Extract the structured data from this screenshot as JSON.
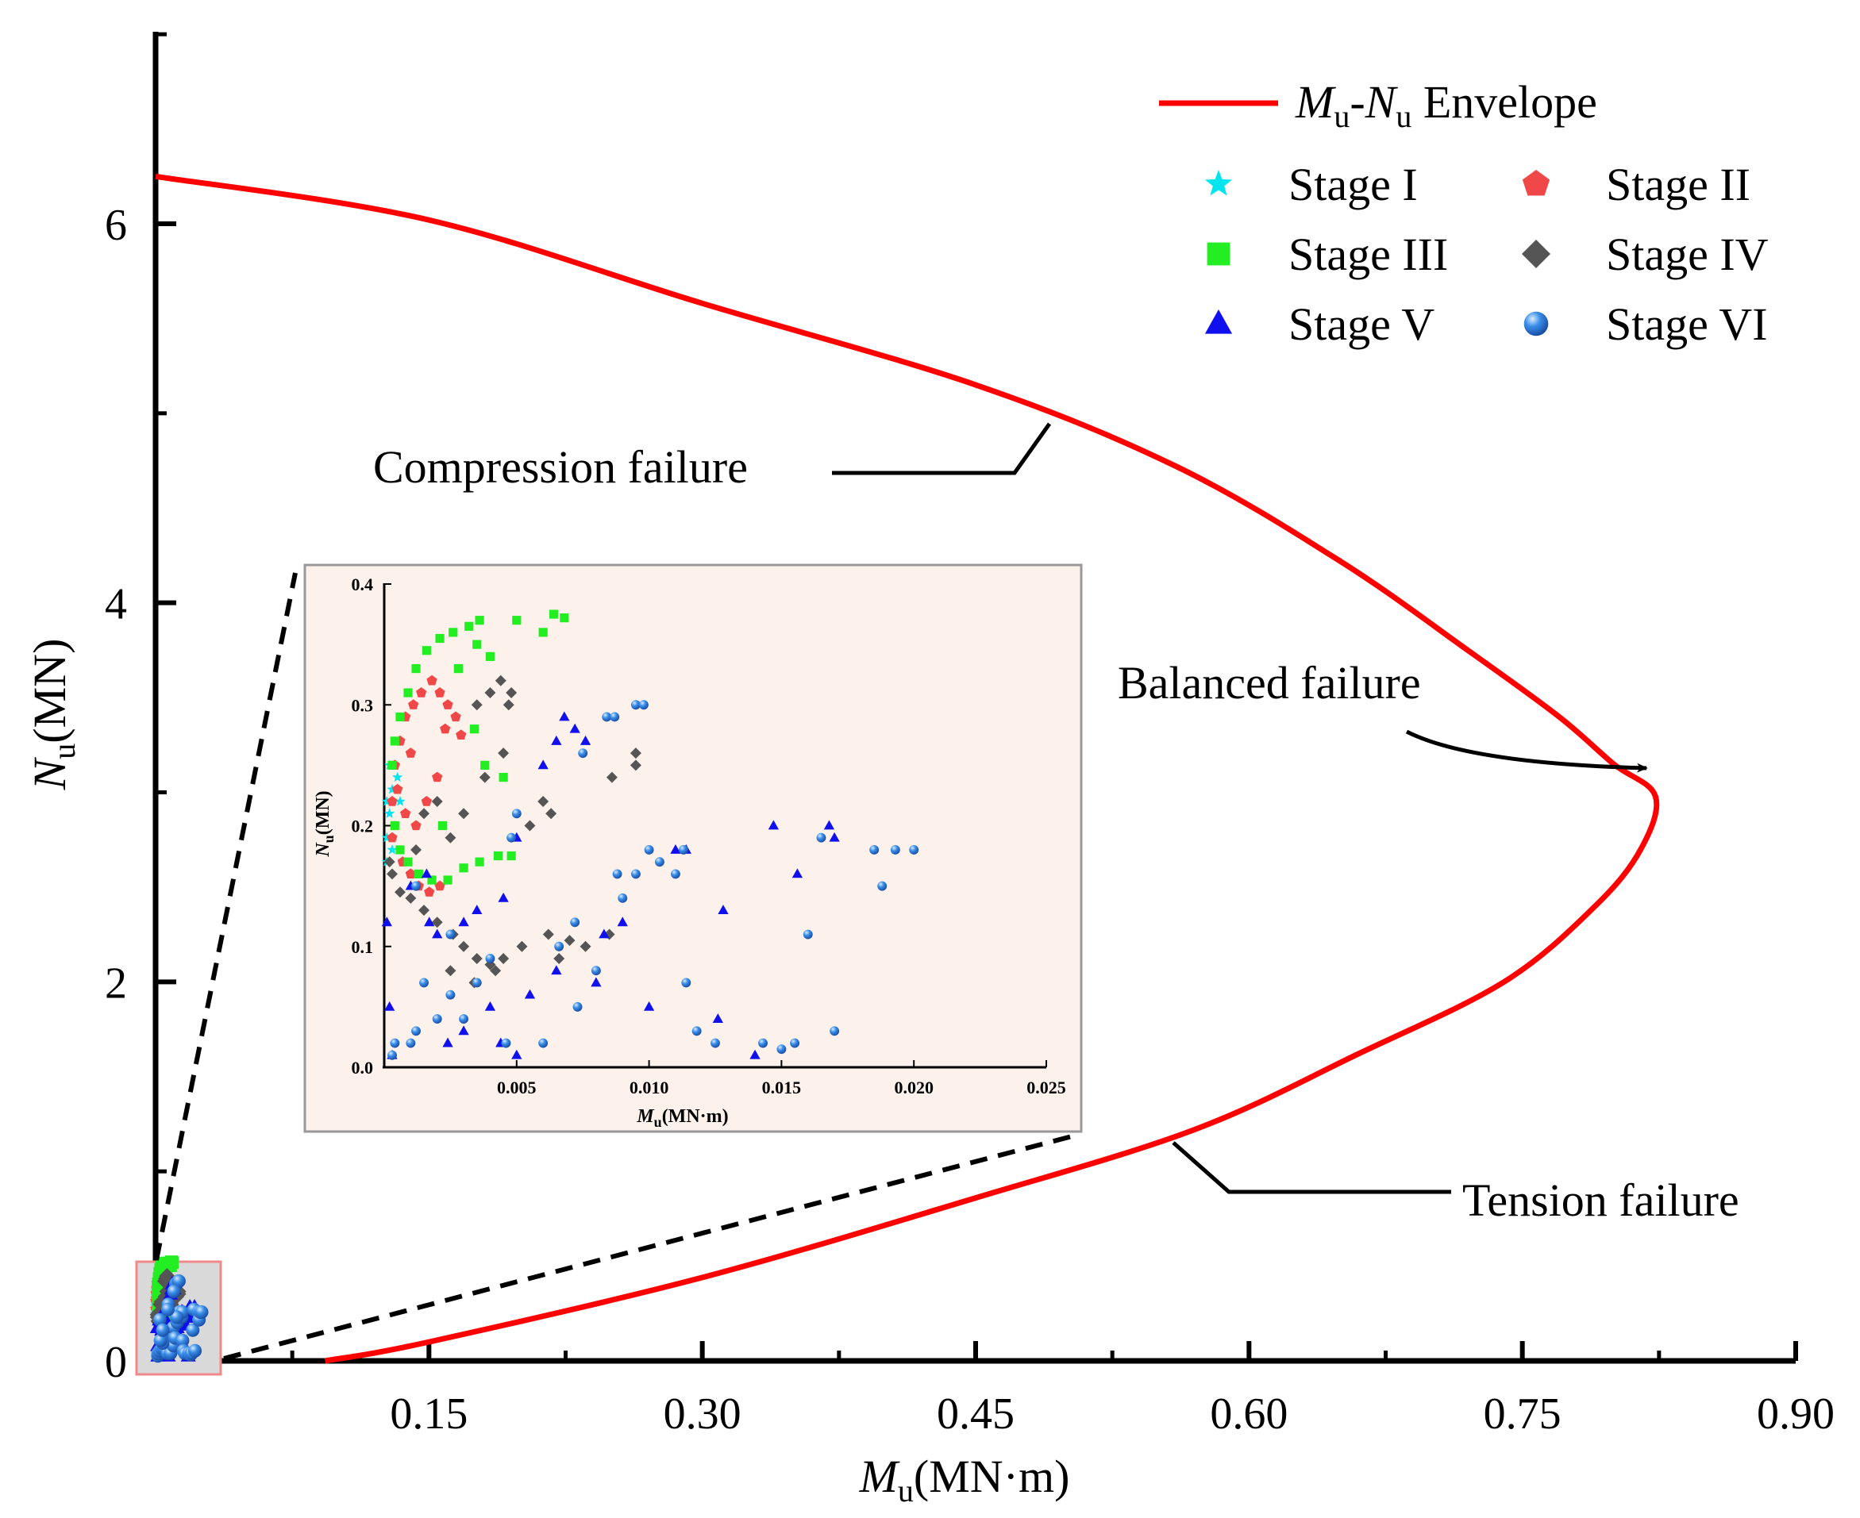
{
  "chart_data": [
    {
      "type": "line",
      "role": "main",
      "xlabel": {
        "main": "M",
        "sub": "u",
        "unit": "(MN·m)"
      },
      "ylabel": {
        "main": "N",
        "sub": "u",
        "unit": "(MN)"
      },
      "xlim": [
        0,
        0.9
      ],
      "ylim": [
        0,
        7.0
      ],
      "xticks": [
        0.15,
        0.3,
        0.45,
        0.6,
        0.75,
        0.9
      ],
      "xtick_labels": [
        "0.15",
        "0.30",
        "0.45",
        "0.60",
        "0.75",
        "0.90"
      ],
      "yticks": [
        0,
        2,
        4,
        6
      ],
      "ytick_labels": [
        "0",
        "2",
        "4",
        "6"
      ],
      "grid": false,
      "series": [
        {
          "name": "Mu-Nu Envelope",
          "color": "#ff0000",
          "points": [
            [
              0.0,
              6.25
            ],
            [
              0.15,
              6.02
            ],
            [
              0.3,
              5.58
            ],
            [
              0.45,
              5.15
            ],
            [
              0.56,
              4.72
            ],
            [
              0.65,
              4.22
            ],
            [
              0.72,
              3.75
            ],
            [
              0.77,
              3.4
            ],
            [
              0.8,
              3.15
            ],
            [
              0.823,
              2.98
            ],
            [
              0.815,
              2.7
            ],
            [
              0.79,
              2.4
            ],
            [
              0.74,
              2.0
            ],
            [
              0.66,
              1.62
            ],
            [
              0.57,
              1.22
            ],
            [
              0.45,
              0.86
            ],
            [
              0.3,
              0.44
            ],
            [
              0.15,
              0.1
            ],
            [
              0.093,
              0.0
            ]
          ]
        }
      ],
      "annotations": [
        {
          "text": "Compression failure",
          "target": [
            0.492,
            5.0
          ]
        },
        {
          "text": "Balanced failure",
          "target": [
            0.823,
            3.06
          ]
        },
        {
          "text": "Tension failure",
          "target": [
            0.55,
            1.2
          ]
        }
      ]
    },
    {
      "type": "scatter",
      "role": "inset",
      "xlabel": {
        "main": "M",
        "sub": "u",
        "unit": "(MN·m)"
      },
      "ylabel": {
        "main": "N",
        "sub": "u",
        "unit": "(MN)"
      },
      "xlim": [
        0,
        0.025
      ],
      "ylim": [
        0,
        0.4
      ],
      "xticks": [
        0.005,
        0.01,
        0.015,
        0.02,
        0.025
      ],
      "xtick_labels": [
        "0.005",
        "0.010",
        "0.015",
        "0.020",
        "0.025"
      ],
      "yticks": [
        0.0,
        0.1,
        0.2,
        0.3,
        0.4
      ],
      "ytick_labels": [
        "0.0",
        "0.1",
        "0.2",
        "0.3",
        "0.4"
      ],
      "series": [
        {
          "name": "Stage I",
          "marker": "star",
          "color": "#00e5ee",
          "points": [
            [
              0.0001,
              0.17
            ],
            [
              0.0001,
              0.19
            ],
            [
              0.0002,
              0.21
            ],
            [
              0.0003,
              0.23
            ],
            [
              0.0002,
              0.25
            ],
            [
              0.0001,
              0.22
            ],
            [
              0.0004,
              0.2
            ],
            [
              0.0003,
              0.18
            ],
            [
              0.0005,
              0.24
            ],
            [
              0.0006,
              0.22
            ]
          ]
        },
        {
          "name": "Stage II",
          "marker": "pentagon",
          "color": "#f04848",
          "points": [
            [
              0.0003,
              0.19
            ],
            [
              0.0003,
              0.22
            ],
            [
              0.0004,
              0.25
            ],
            [
              0.0006,
              0.27
            ],
            [
              0.0008,
              0.29
            ],
            [
              0.0011,
              0.3
            ],
            [
              0.0014,
              0.31
            ],
            [
              0.0018,
              0.32
            ],
            [
              0.0021,
              0.31
            ],
            [
              0.0024,
              0.3
            ],
            [
              0.0027,
              0.29
            ],
            [
              0.0029,
              0.275
            ],
            [
              0.0007,
              0.17
            ],
            [
              0.001,
              0.16
            ],
            [
              0.0013,
              0.15
            ],
            [
              0.0017,
              0.145
            ],
            [
              0.0021,
              0.15
            ],
            [
              0.0005,
              0.23
            ],
            [
              0.0008,
              0.21
            ],
            [
              0.0012,
              0.2
            ],
            [
              0.0016,
              0.22
            ],
            [
              0.002,
              0.24
            ],
            [
              0.0023,
              0.28
            ],
            [
              0.001,
              0.26
            ]
          ]
        },
        {
          "name": "Stage III",
          "marker": "square",
          "color": "#22ee22",
          "points": [
            [
              0.0003,
              0.25
            ],
            [
              0.0004,
              0.27
            ],
            [
              0.0006,
              0.29
            ],
            [
              0.0009,
              0.31
            ],
            [
              0.0012,
              0.33
            ],
            [
              0.0016,
              0.345
            ],
            [
              0.0021,
              0.355
            ],
            [
              0.0026,
              0.36
            ],
            [
              0.0032,
              0.365
            ],
            [
              0.0036,
              0.37
            ],
            [
              0.005,
              0.37
            ],
            [
              0.0064,
              0.375
            ],
            [
              0.0068,
              0.372
            ],
            [
              0.006,
              0.36
            ],
            [
              0.0035,
              0.35
            ],
            [
              0.0004,
              0.2
            ],
            [
              0.0006,
              0.18
            ],
            [
              0.0009,
              0.17
            ],
            [
              0.0013,
              0.16
            ],
            [
              0.0018,
              0.155
            ],
            [
              0.0024,
              0.155
            ],
            [
              0.003,
              0.165
            ],
            [
              0.0036,
              0.17
            ],
            [
              0.0043,
              0.175
            ],
            [
              0.0048,
              0.175
            ],
            [
              0.0045,
              0.24
            ],
            [
              0.0038,
              0.25
            ],
            [
              0.0034,
              0.28
            ],
            [
              0.004,
              0.34
            ],
            [
              0.0028,
              0.33
            ],
            [
              0.0022,
              0.2
            ]
          ]
        },
        {
          "name": "Stage IV",
          "marker": "diamond",
          "color": "#555555",
          "points": [
            [
              0.0002,
              0.17
            ],
            [
              0.0003,
              0.16
            ],
            [
              0.0006,
              0.145
            ],
            [
              0.001,
              0.14
            ],
            [
              0.0015,
              0.13
            ],
            [
              0.002,
              0.12
            ],
            [
              0.0026,
              0.11
            ],
            [
              0.003,
              0.1
            ],
            [
              0.0035,
              0.09
            ],
            [
              0.004,
              0.085
            ],
            [
              0.0045,
              0.09
            ],
            [
              0.0052,
              0.1
            ],
            [
              0.0062,
              0.11
            ],
            [
              0.007,
              0.105
            ],
            [
              0.0076,
              0.1
            ],
            [
              0.0085,
              0.11
            ],
            [
              0.0095,
              0.26
            ],
            [
              0.0095,
              0.25
            ],
            [
              0.0086,
              0.24
            ],
            [
              0.0063,
              0.21
            ],
            [
              0.006,
              0.22
            ],
            [
              0.0055,
              0.2
            ],
            [
              0.0045,
              0.26
            ],
            [
              0.0047,
              0.3
            ],
            [
              0.0048,
              0.31
            ],
            [
              0.0044,
              0.32
            ],
            [
              0.004,
              0.31
            ],
            [
              0.0035,
              0.3
            ],
            [
              0.002,
              0.22
            ],
            [
              0.0025,
              0.19
            ],
            [
              0.003,
              0.21
            ],
            [
              0.0038,
              0.24
            ],
            [
              0.0015,
              0.21
            ],
            [
              0.0012,
              0.18
            ],
            [
              0.0025,
              0.08
            ],
            [
              0.0034,
              0.07
            ],
            [
              0.0042,
              0.08
            ],
            [
              0.0066,
              0.09
            ]
          ]
        },
        {
          "name": "Stage V",
          "marker": "triangle",
          "color": "#1010ee",
          "points": [
            [
              0.0001,
              0.12
            ],
            [
              0.0002,
              0.05
            ],
            [
              0.0003,
              0.01
            ],
            [
              0.001,
              0.15
            ],
            [
              0.0016,
              0.16
            ],
            [
              0.002,
              0.11
            ],
            [
              0.003,
              0.12
            ],
            [
              0.004,
              0.05
            ],
            [
              0.0055,
              0.06
            ],
            [
              0.006,
              0.25
            ],
            [
              0.0065,
              0.27
            ],
            [
              0.0068,
              0.29
            ],
            [
              0.0072,
              0.28
            ],
            [
              0.0076,
              0.27
            ],
            [
              0.0083,
              0.11
            ],
            [
              0.009,
              0.12
            ],
            [
              0.01,
              0.05
            ],
            [
              0.011,
              0.18
            ],
            [
              0.0114,
              0.18
            ],
            [
              0.0126,
              0.04
            ],
            [
              0.0128,
              0.13
            ],
            [
              0.014,
              0.01
            ],
            [
              0.0147,
              0.2
            ],
            [
              0.0156,
              0.16
            ],
            [
              0.0168,
              0.2
            ],
            [
              0.017,
              0.19
            ],
            [
              0.0035,
              0.13
            ],
            [
              0.005,
              0.01
            ],
            [
              0.0044,
              0.02
            ],
            [
              0.003,
              0.03
            ],
            [
              0.0024,
              0.02
            ],
            [
              0.005,
              0.19
            ],
            [
              0.0045,
              0.14
            ],
            [
              0.0065,
              0.08
            ],
            [
              0.008,
              0.07
            ],
            [
              0.0017,
              0.12
            ]
          ]
        },
        {
          "name": "Stage VI",
          "marker": "sphere",
          "color": "#3a8ee8",
          "points": [
            [
              0.0003,
              0.01
            ],
            [
              0.0004,
              0.02
            ],
            [
              0.001,
              0.02
            ],
            [
              0.0012,
              0.03
            ],
            [
              0.0012,
              0.15
            ],
            [
              0.002,
              0.04
            ],
            [
              0.003,
              0.04
            ],
            [
              0.0035,
              0.07
            ],
            [
              0.004,
              0.09
            ],
            [
              0.0046,
              0.02
            ],
            [
              0.006,
              0.02
            ],
            [
              0.0066,
              0.1
            ],
            [
              0.0072,
              0.12
            ],
            [
              0.0073,
              0.05
            ],
            [
              0.008,
              0.08
            ],
            [
              0.009,
              0.14
            ],
            [
              0.0095,
              0.16
            ],
            [
              0.01,
              0.18
            ],
            [
              0.0104,
              0.17
            ],
            [
              0.011,
              0.16
            ],
            [
              0.0113,
              0.18
            ],
            [
              0.0114,
              0.07
            ],
            [
              0.0118,
              0.03
            ],
            [
              0.0125,
              0.02
            ],
            [
              0.0143,
              0.02
            ],
            [
              0.015,
              0.015
            ],
            [
              0.0155,
              0.02
            ],
            [
              0.016,
              0.11
            ],
            [
              0.0165,
              0.19
            ],
            [
              0.017,
              0.03
            ],
            [
              0.0185,
              0.18
            ],
            [
              0.0188,
              0.15
            ],
            [
              0.0193,
              0.18
            ],
            [
              0.02,
              0.18
            ],
            [
              0.0088,
              0.16
            ],
            [
              0.0084,
              0.29
            ],
            [
              0.0087,
              0.29
            ],
            [
              0.0095,
              0.3
            ],
            [
              0.0098,
              0.3
            ],
            [
              0.0075,
              0.26
            ],
            [
              0.005,
              0.21
            ],
            [
              0.0048,
              0.19
            ],
            [
              0.0025,
              0.06
            ],
            [
              0.0015,
              0.07
            ],
            [
              0.0025,
              0.11
            ]
          ]
        }
      ]
    }
  ],
  "legend": {
    "envelope_label": {
      "pre": "M",
      "pre_sub": "u",
      "dash": "-",
      "post": "N",
      "post_sub": "u",
      "suffix": " Envelope"
    },
    "items": [
      {
        "label": "Stage I",
        "marker": "star",
        "color": "#00e5ee"
      },
      {
        "label": "Stage II",
        "marker": "pentagon",
        "color": "#f04848"
      },
      {
        "label": "Stage III",
        "marker": "square",
        "color": "#22ee22"
      },
      {
        "label": "Stage IV",
        "marker": "diamond",
        "color": "#555555"
      },
      {
        "label": "Stage V",
        "marker": "triangle",
        "color": "#1010ee"
      },
      {
        "label": "Stage VI",
        "marker": "sphere",
        "color": "#3a8ee8"
      }
    ]
  },
  "colors": {
    "envelope": "#ff0000",
    "inset_bg": "#fdf1ec",
    "highlight_box": "#f08a8a"
  }
}
